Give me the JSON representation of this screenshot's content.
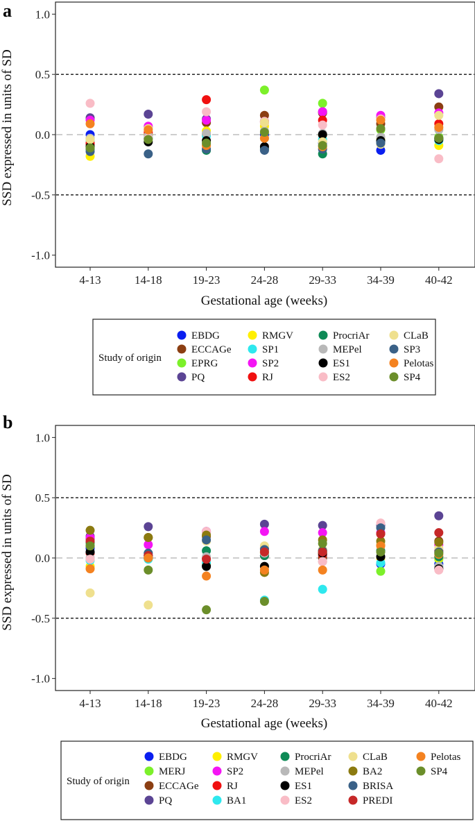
{
  "figure": {
    "panels": [
      {
        "letter": "a"
      },
      {
        "letter": "b"
      }
    ]
  },
  "chart_data": [
    {
      "type": "scatter",
      "panel": "a",
      "title": "",
      "xlabel": "Gestational age (weeks)",
      "ylabel": "SSD expressed in units of SD",
      "categories": [
        "4-13",
        "14-18",
        "19-23",
        "24-28",
        "29-33",
        "34-39",
        "40-42"
      ],
      "ylim": [
        -1.1,
        1.1
      ],
      "yticks": [
        -1.0,
        -0.5,
        0.0,
        0.5,
        1.0
      ],
      "ytick_labels": [
        "-1.0",
        "-0.5",
        "0.0",
        "0.5",
        "1.0"
      ],
      "reference_lines": [
        {
          "y": 0.5,
          "style": "dashed-black"
        },
        {
          "y": 0.0,
          "style": "dashed-grey"
        },
        {
          "y": -0.5,
          "style": "dashed-black"
        }
      ],
      "legend_title": "Study of origin",
      "legend_columns": 4,
      "legend": [
        {
          "name": "EBDG",
          "color": "#0a1ef0"
        },
        {
          "name": "ECCAGe",
          "color": "#8b3e12"
        },
        {
          "name": "EPRG",
          "color": "#7cf02a"
        },
        {
          "name": "PQ",
          "color": "#5b4494"
        },
        {
          "name": "RMGV",
          "color": "#ffef00"
        },
        {
          "name": "SP1",
          "color": "#2ee8ee"
        },
        {
          "name": "SP2",
          "color": "#f415f4"
        },
        {
          "name": "RJ",
          "color": "#f01010"
        },
        {
          "name": "ProcriAr",
          "color": "#0e8a56"
        },
        {
          "name": "MEPel",
          "color": "#b8b8b8"
        },
        {
          "name": "ES1",
          "color": "#000000"
        },
        {
          "name": "ES2",
          "color": "#f9bcc6"
        },
        {
          "name": "CLaB",
          "color": "#efe08e"
        },
        {
          "name": "SP3",
          "color": "#3a6187"
        },
        {
          "name": "Pelotas",
          "color": "#f48220"
        },
        {
          "name": "SP4",
          "color": "#6b8e2a"
        }
      ],
      "series": [
        {
          "name": "EBDG",
          "values": [
            0.0,
            -0.03,
            0.0,
            0.0,
            -0.07,
            -0.13,
            -0.03
          ]
        },
        {
          "name": "ECCAGe",
          "values": [
            -0.08,
            0.0,
            0.1,
            0.16,
            0.18,
            0.09,
            0.23
          ]
        },
        {
          "name": "EPRG",
          "values": [
            0.13,
            0.06,
            0.0,
            0.37,
            0.26,
            0.04,
            -0.02
          ]
        },
        {
          "name": "PQ",
          "values": [
            0.14,
            0.17,
            0.13,
            0.11,
            0.19,
            0.14,
            0.34
          ]
        },
        {
          "name": "RMGV",
          "values": [
            -0.18,
            0.0,
            0.03,
            0.07,
            0.0,
            -0.03,
            -0.09
          ]
        },
        {
          "name": "SP1",
          "values": [
            -0.05,
            -0.02,
            -0.01,
            -0.03,
            -0.04,
            -0.05,
            -0.05
          ]
        },
        {
          "name": "SP2",
          "values": [
            0.12,
            0.07,
            0.12,
            0.1,
            0.19,
            0.16,
            0.18
          ]
        },
        {
          "name": "RJ",
          "values": [
            -0.07,
            0.02,
            0.29,
            0.11,
            0.12,
            0.13,
            0.09
          ]
        },
        {
          "name": "ProcriAr",
          "values": [
            -0.12,
            -0.03,
            -0.13,
            -0.12,
            -0.16,
            -0.06,
            -0.03
          ]
        },
        {
          "name": "MEPel",
          "values": [
            -0.03,
            -0.01,
            0.01,
            0.03,
            0.01,
            -0.02,
            0.04
          ]
        },
        {
          "name": "ES1",
          "values": [
            -0.1,
            -0.06,
            -0.05,
            -0.1,
            0.0,
            -0.05,
            -0.04
          ]
        },
        {
          "name": "ES2",
          "values": [
            0.26,
            -0.03,
            0.19,
            0.11,
            0.08,
            0.13,
            -0.2
          ]
        },
        {
          "name": "CLaB",
          "values": [
            -0.04,
            0.05,
            -0.08,
            0.1,
            -0.06,
            -0.08,
            0.16
          ]
        },
        {
          "name": "SP3",
          "values": [
            -0.14,
            -0.16,
            -0.12,
            -0.13,
            -0.12,
            -0.07,
            -0.03
          ]
        },
        {
          "name": "Pelotas",
          "values": [
            0.09,
            0.04,
            -0.09,
            -0.03,
            -0.1,
            0.12,
            0.06
          ]
        },
        {
          "name": "SP4",
          "values": [
            -0.11,
            -0.04,
            -0.07,
            0.02,
            -0.09,
            0.05,
            -0.03
          ]
        }
      ]
    },
    {
      "type": "scatter",
      "panel": "b",
      "title": "",
      "xlabel": "Gestational age (weeks)",
      "ylabel": "SSD expressed in units of SD",
      "categories": [
        "4-13",
        "14-18",
        "19-23",
        "24-28",
        "29-33",
        "34-39",
        "40-42"
      ],
      "ylim": [
        -1.1,
        1.1
      ],
      "yticks": [
        -1.0,
        -0.5,
        0.0,
        0.5,
        1.0
      ],
      "ytick_labels": [
        "-1.0",
        "-0.5",
        "0.0",
        "0.5",
        "1.0"
      ],
      "reference_lines": [
        {
          "y": 0.5,
          "style": "dashed-black"
        },
        {
          "y": 0.0,
          "style": "dashed-grey"
        },
        {
          "y": -0.5,
          "style": "dashed-black"
        }
      ],
      "legend_title": "Study of origin",
      "legend_columns": 5,
      "legend": [
        {
          "name": "EBDG",
          "color": "#0a1ef0"
        },
        {
          "name": "MERJ",
          "color": "#7cf02a"
        },
        {
          "name": "ECCAGe",
          "color": "#8b3e12"
        },
        {
          "name": "PQ",
          "color": "#5b4494"
        },
        {
          "name": "RMGV",
          "color": "#ffef00"
        },
        {
          "name": "SP2",
          "color": "#f415f4"
        },
        {
          "name": "RJ",
          "color": "#f01010"
        },
        {
          "name": "BA1",
          "color": "#2ee8ee"
        },
        {
          "name": "ProcriAr",
          "color": "#0e8a56"
        },
        {
          "name": "MEPel",
          "color": "#b8b8b8"
        },
        {
          "name": "ES1",
          "color": "#000000"
        },
        {
          "name": "ES2",
          "color": "#f9bcc6"
        },
        {
          "name": "CLaB",
          "color": "#efe08e"
        },
        {
          "name": "BA2",
          "color": "#8b7a10"
        },
        {
          "name": "BRISA",
          "color": "#3a6187"
        },
        {
          "name": "PREDI",
          "color": "#c62828"
        },
        {
          "name": "Pelotas",
          "color": "#f48220"
        },
        {
          "name": "SP4",
          "color": "#6b8e2a"
        }
      ],
      "series": [
        {
          "name": "EBDG",
          "values": [
            0.08,
            0.02,
            -0.06,
            0.02,
            0.02,
            -0.05,
            -0.05
          ]
        },
        {
          "name": "MERJ",
          "values": [
            0.12,
            0.0,
            0.0,
            0.05,
            0.05,
            -0.11,
            -0.01
          ]
        },
        {
          "name": "ECCAGe",
          "values": [
            0.16,
            0.17,
            0.18,
            0.08,
            0.0,
            0.11,
            0.14
          ]
        },
        {
          "name": "PQ",
          "values": [
            0.18,
            0.26,
            0.22,
            0.28,
            0.27,
            0.27,
            0.35
          ]
        },
        {
          "name": "RMGV",
          "values": [
            -0.07,
            0.0,
            -0.05,
            0.04,
            0.03,
            0.0,
            0.0
          ]
        },
        {
          "name": "SP2",
          "values": [
            0.17,
            0.11,
            0.22,
            0.22,
            0.21,
            0.21,
            0.11
          ]
        },
        {
          "name": "RJ",
          "values": [
            0.04,
            0.0,
            0.0,
            0.02,
            0.03,
            0.2,
            0.06
          ]
        },
        {
          "name": "BA1",
          "values": [
            -0.02,
            -0.01,
            -0.04,
            -0.35,
            -0.26,
            -0.04,
            -0.07
          ]
        },
        {
          "name": "ProcriAr",
          "values": [
            0.13,
            0.0,
            0.06,
            0.02,
            0.06,
            0.06,
            0.01
          ]
        },
        {
          "name": "MEPel",
          "values": [
            0.0,
            0.04,
            0.01,
            0.04,
            -0.03,
            0.01,
            -0.07
          ]
        },
        {
          "name": "ES1",
          "values": [
            0.05,
            0.02,
            -0.07,
            -0.07,
            0.04,
            0.01,
            -0.09
          ]
        },
        {
          "name": "ES2",
          "values": [
            -0.01,
            0.03,
            0.22,
            0.09,
            -0.03,
            0.29,
            -0.1
          ]
        },
        {
          "name": "CLaB",
          "values": [
            -0.29,
            -0.39,
            0.14,
            0.1,
            0.07,
            0.12,
            0.08
          ]
        },
        {
          "name": "BA2",
          "values": [
            0.23,
            0.17,
            0.19,
            -0.12,
            0.15,
            0.14,
            0.13
          ]
        },
        {
          "name": "BRISA",
          "values": [
            0.1,
            0.04,
            0.15,
            0.07,
            0.06,
            0.25,
            0.05
          ]
        },
        {
          "name": "PREDI",
          "values": [
            0.14,
            0.02,
            -0.01,
            0.05,
            0.05,
            0.2,
            0.21
          ]
        },
        {
          "name": "Pelotas",
          "values": [
            -0.09,
            0.0,
            -0.15,
            -0.1,
            -0.1,
            0.1,
            0.03
          ]
        },
        {
          "name": "SP4",
          "values": [
            0.1,
            -0.1,
            -0.43,
            -0.36,
            0.12,
            0.05,
            0.04
          ]
        }
      ]
    }
  ]
}
